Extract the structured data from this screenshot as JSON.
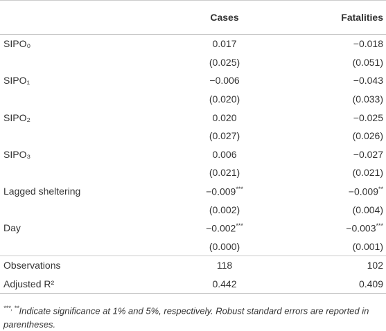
{
  "table": {
    "columns": [
      "Cases",
      "Fatalities"
    ],
    "rows": [
      {
        "label": "SIPO₀",
        "cells": [
          {
            "text": "0.017"
          },
          {
            "text": "−0.018"
          }
        ]
      },
      {
        "cells": [
          {
            "text": "(0.025)"
          },
          {
            "text": "(0.051)"
          }
        ]
      },
      {
        "label": "SIPO₁",
        "cells": [
          {
            "text": "−0.006"
          },
          {
            "text": "−0.043"
          }
        ]
      },
      {
        "cells": [
          {
            "text": "(0.020)"
          },
          {
            "text": "(0.033)"
          }
        ]
      },
      {
        "label": "SIPO₂",
        "cells": [
          {
            "text": "0.020"
          },
          {
            "text": "−0.025"
          }
        ]
      },
      {
        "cells": [
          {
            "text": "(0.027)"
          },
          {
            "text": "(0.026)"
          }
        ]
      },
      {
        "label": "SIPO₃",
        "cells": [
          {
            "text": "0.006"
          },
          {
            "text": "−0.027"
          }
        ]
      },
      {
        "cells": [
          {
            "text": "(0.021)"
          },
          {
            "text": "(0.021)"
          }
        ]
      },
      {
        "label": "Lagged sheltering",
        "cells": [
          {
            "text": "−0.009",
            "sig": "***"
          },
          {
            "text": "−0.009",
            "sig": "**"
          }
        ]
      },
      {
        "cells": [
          {
            "text": "(0.002)"
          },
          {
            "text": "(0.004)"
          }
        ]
      },
      {
        "label": "Day",
        "cells": [
          {
            "text": "−0.002",
            "sig": "***"
          },
          {
            "text": "−0.003",
            "sig": "***"
          }
        ]
      },
      {
        "cells": [
          {
            "text": "(0.000)"
          },
          {
            "text": "(0.001)"
          }
        ]
      },
      {
        "label": "Observations",
        "cells": [
          {
            "text": "118"
          },
          {
            "text": "102"
          }
        ]
      },
      {
        "label": "Adjusted R²",
        "cells": [
          {
            "text": "0.442"
          },
          {
            "text": "0.409"
          }
        ]
      }
    ],
    "footnote": {
      "marks": "***, **",
      "text": "Indicate significance at 1% and 5%, respectively. Robust standard errors are reported in parentheses."
    }
  }
}
